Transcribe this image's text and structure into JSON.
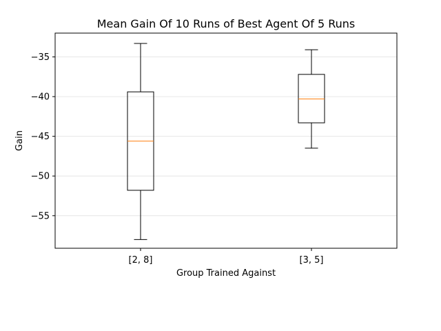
{
  "chart_data": {
    "type": "box",
    "title": "Mean Gain Of 10 Runs of Best Agent Of 5 Runs",
    "xlabel": "Group Trained Against",
    "ylabel": "Gain",
    "ylim": [
      -59.1,
      -32.0
    ],
    "yticks": [
      -35,
      -40,
      -45,
      -50,
      -55
    ],
    "ytick_labels": [
      "−35",
      "−40",
      "−45",
      "−50",
      "−55"
    ],
    "grid": "horizontal",
    "legend": "none",
    "categories": [
      "[2, 8]",
      "[3, 5]"
    ],
    "boxes": [
      {
        "category": "[2, 8]",
        "whisker_low": -58.0,
        "q1": -51.8,
        "median": -45.6,
        "q3": -39.4,
        "whisker_high": -33.3
      },
      {
        "category": "[3, 5]",
        "whisker_low": -46.5,
        "q1": -43.3,
        "median": -40.3,
        "q3": -37.2,
        "whisker_high": -34.1
      }
    ],
    "colors": {
      "box": "#000000",
      "median": "#ff7f0e",
      "grid": "#e6e6e6"
    }
  }
}
